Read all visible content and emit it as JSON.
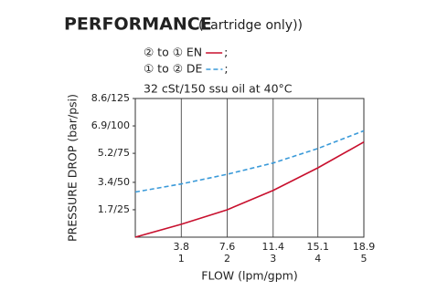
{
  "chart_data": {
    "type": "line",
    "title": "PERFORMANCE",
    "subtitle": "(cartridge only))",
    "note": "32 cSt/150 ssu oil at 40°C",
    "legend_suffix": ";",
    "x_label": "FLOW (lpm/gpm)",
    "y_label": "PRESSURE DROP (bar/psi)",
    "x": [
      0,
      3.8,
      7.6,
      11.4,
      15.1,
      18.9
    ],
    "series": [
      {
        "name": "② to ① EN",
        "color": "#c8102e",
        "dashed": false,
        "values": [
          0,
          0.8,
          1.7,
          2.9,
          4.3,
          5.9
        ]
      },
      {
        "name": "① to ② DE",
        "color": "#3a9ad9",
        "dashed": true,
        "values": [
          2.8,
          3.3,
          3.9,
          4.6,
          5.5,
          6.6
        ]
      }
    ],
    "xlim": [
      0,
      18.9
    ],
    "xticks": [
      3.8,
      7.6,
      11.4,
      15.1,
      18.9
    ],
    "xticks_gpm": [
      1,
      2,
      3,
      4,
      5
    ],
    "ylim": [
      0,
      8.6
    ],
    "yticks": [
      {
        "value": 1.7,
        "label": "1.7/25"
      },
      {
        "value": 3.4,
        "label": "3.4/50"
      },
      {
        "value": 5.2,
        "label": "5.2/75"
      },
      {
        "value": 6.9,
        "label": "6.9/100"
      },
      {
        "value": 8.6,
        "label": "8.6/125"
      }
    ],
    "grid": true
  }
}
